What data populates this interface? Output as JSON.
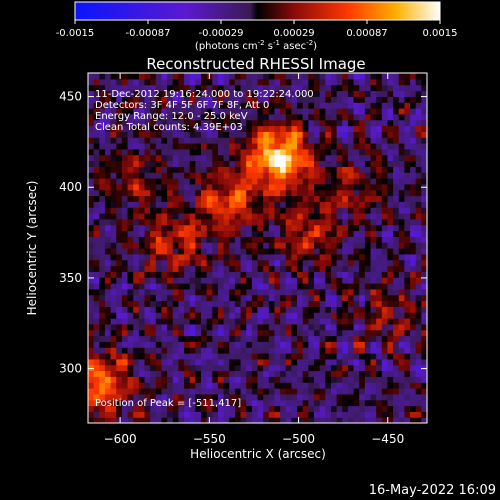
{
  "colorbar": {
    "ticks": [
      "-0.0015",
      "-0.00087",
      "-0.00029",
      "0.00029",
      "0.00087",
      "0.0015"
    ],
    "units_prefix": "(photons cm",
    "units_exp1": "-2",
    "units_mid": " s",
    "units_exp2": "-1",
    "units_mid2": " asec",
    "units_exp3": "-2",
    "units_suffix": ")"
  },
  "image": {
    "title": "Reconstructed RHESSI Image",
    "info_lines": [
      "11-Dec-2012 19:16:24.000 to 19:22:24.000",
      "Detectors: 3F 4F 5F 6F 7F 8F, Att 0",
      "Energy Range: 12.0 - 25.0 keV",
      "Clean     Total counts: 4.39E+03"
    ],
    "peak_label": "Position of Peak = [-511,417]",
    "footer_timestamp": "16-May-2022 16:09"
  },
  "chart_data": {
    "type": "heatmap",
    "title": "Reconstructed RHESSI Image",
    "xlabel": "Heliocentric X (arcsec)",
    "ylabel": "Heliocentric Y (arcsec)",
    "xlim": [
      -618,
      -428
    ],
    "ylim": [
      270,
      463
    ],
    "x_ticks": [
      -600,
      -550,
      -500,
      -450
    ],
    "y_ticks": [
      300,
      350,
      400,
      450
    ],
    "colorbar_range": [
      -0.0015,
      0.0015
    ],
    "peak_position": [
      -511,
      417
    ],
    "sources": [
      {
        "x": -511,
        "y": 417,
        "intensity": 0.0015
      },
      {
        "x": -540,
        "y": 392,
        "intensity": 0.0008
      },
      {
        "x": -570,
        "y": 370,
        "intensity": 0.0006
      },
      {
        "x": -495,
        "y": 375,
        "intensity": 0.0006
      },
      {
        "x": -470,
        "y": 400,
        "intensity": 0.0004
      },
      {
        "x": -612,
        "y": 292,
        "intensity": 0.001
      },
      {
        "x": -592,
        "y": 405,
        "intensity": 0.0004
      },
      {
        "x": -450,
        "y": 330,
        "intensity": 0.0004
      }
    ],
    "grid": false,
    "colormap": "blue-purple-red-yellow-white"
  }
}
